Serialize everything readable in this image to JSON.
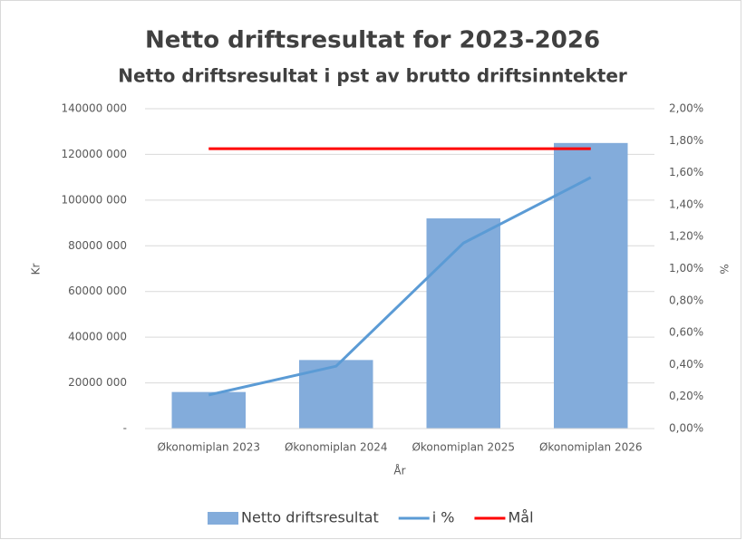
{
  "chart_data": {
    "type": "bar_line",
    "title": "Netto driftsresultat for 2023-2026",
    "subtitle": "Netto driftsresultat i pst av brutto driftsinntekter",
    "x_label": "År",
    "y_label": "Kr",
    "y2_label": "%",
    "categories": [
      "Økonomiplan 2023",
      "Økonomiplan 2024",
      "Økonomiplan 2025",
      "Økonomiplan 2026"
    ],
    "series": [
      {
        "name": "Netto driftsresultat",
        "type": "bar",
        "color": "#83acdb",
        "values": [
          16000000,
          30000000,
          92000000,
          125000000
        ]
      },
      {
        "name": "i %",
        "type": "line",
        "axis": "y2",
        "color": "#5b9bd5",
        "values": [
          0.21,
          0.39,
          1.16,
          1.57
        ]
      },
      {
        "name": "Mål",
        "type": "line",
        "axis": "y2",
        "color": "#ff0000",
        "values": [
          1.75,
          1.75,
          1.75,
          1.75
        ]
      }
    ],
    "ylim": [
      0,
      140000000
    ],
    "yticks": [
      {
        "value": 0,
        "label": "-"
      },
      {
        "value": 20000000,
        "label": "20000 000"
      },
      {
        "value": 40000000,
        "label": "40000 000"
      },
      {
        "value": 60000000,
        "label": "60000 000"
      },
      {
        "value": 80000000,
        "label": "80000 000"
      },
      {
        "value": 100000000,
        "label": "100000 000"
      },
      {
        "value": 120000000,
        "label": "120000 000"
      },
      {
        "value": 140000000,
        "label": "140000 000"
      }
    ],
    "y2lim": [
      0,
      2
    ],
    "y2ticks": [
      {
        "value": 0,
        "label": "0,00%"
      },
      {
        "value": 0.2,
        "label": "0,20%"
      },
      {
        "value": 0.4,
        "label": "0,40%"
      },
      {
        "value": 0.6,
        "label": "0,60%"
      },
      {
        "value": 0.8,
        "label": "0,80%"
      },
      {
        "value": 1,
        "label": "1,00%"
      },
      {
        "value": 1.2,
        "label": "1,20%"
      },
      {
        "value": 1.4,
        "label": "1,40%"
      },
      {
        "value": 1.6,
        "label": "1,60%"
      },
      {
        "value": 1.8,
        "label": "1,80%"
      },
      {
        "value": 2,
        "label": "2,00%"
      }
    ],
    "grid": true,
    "legend": "bottom"
  }
}
